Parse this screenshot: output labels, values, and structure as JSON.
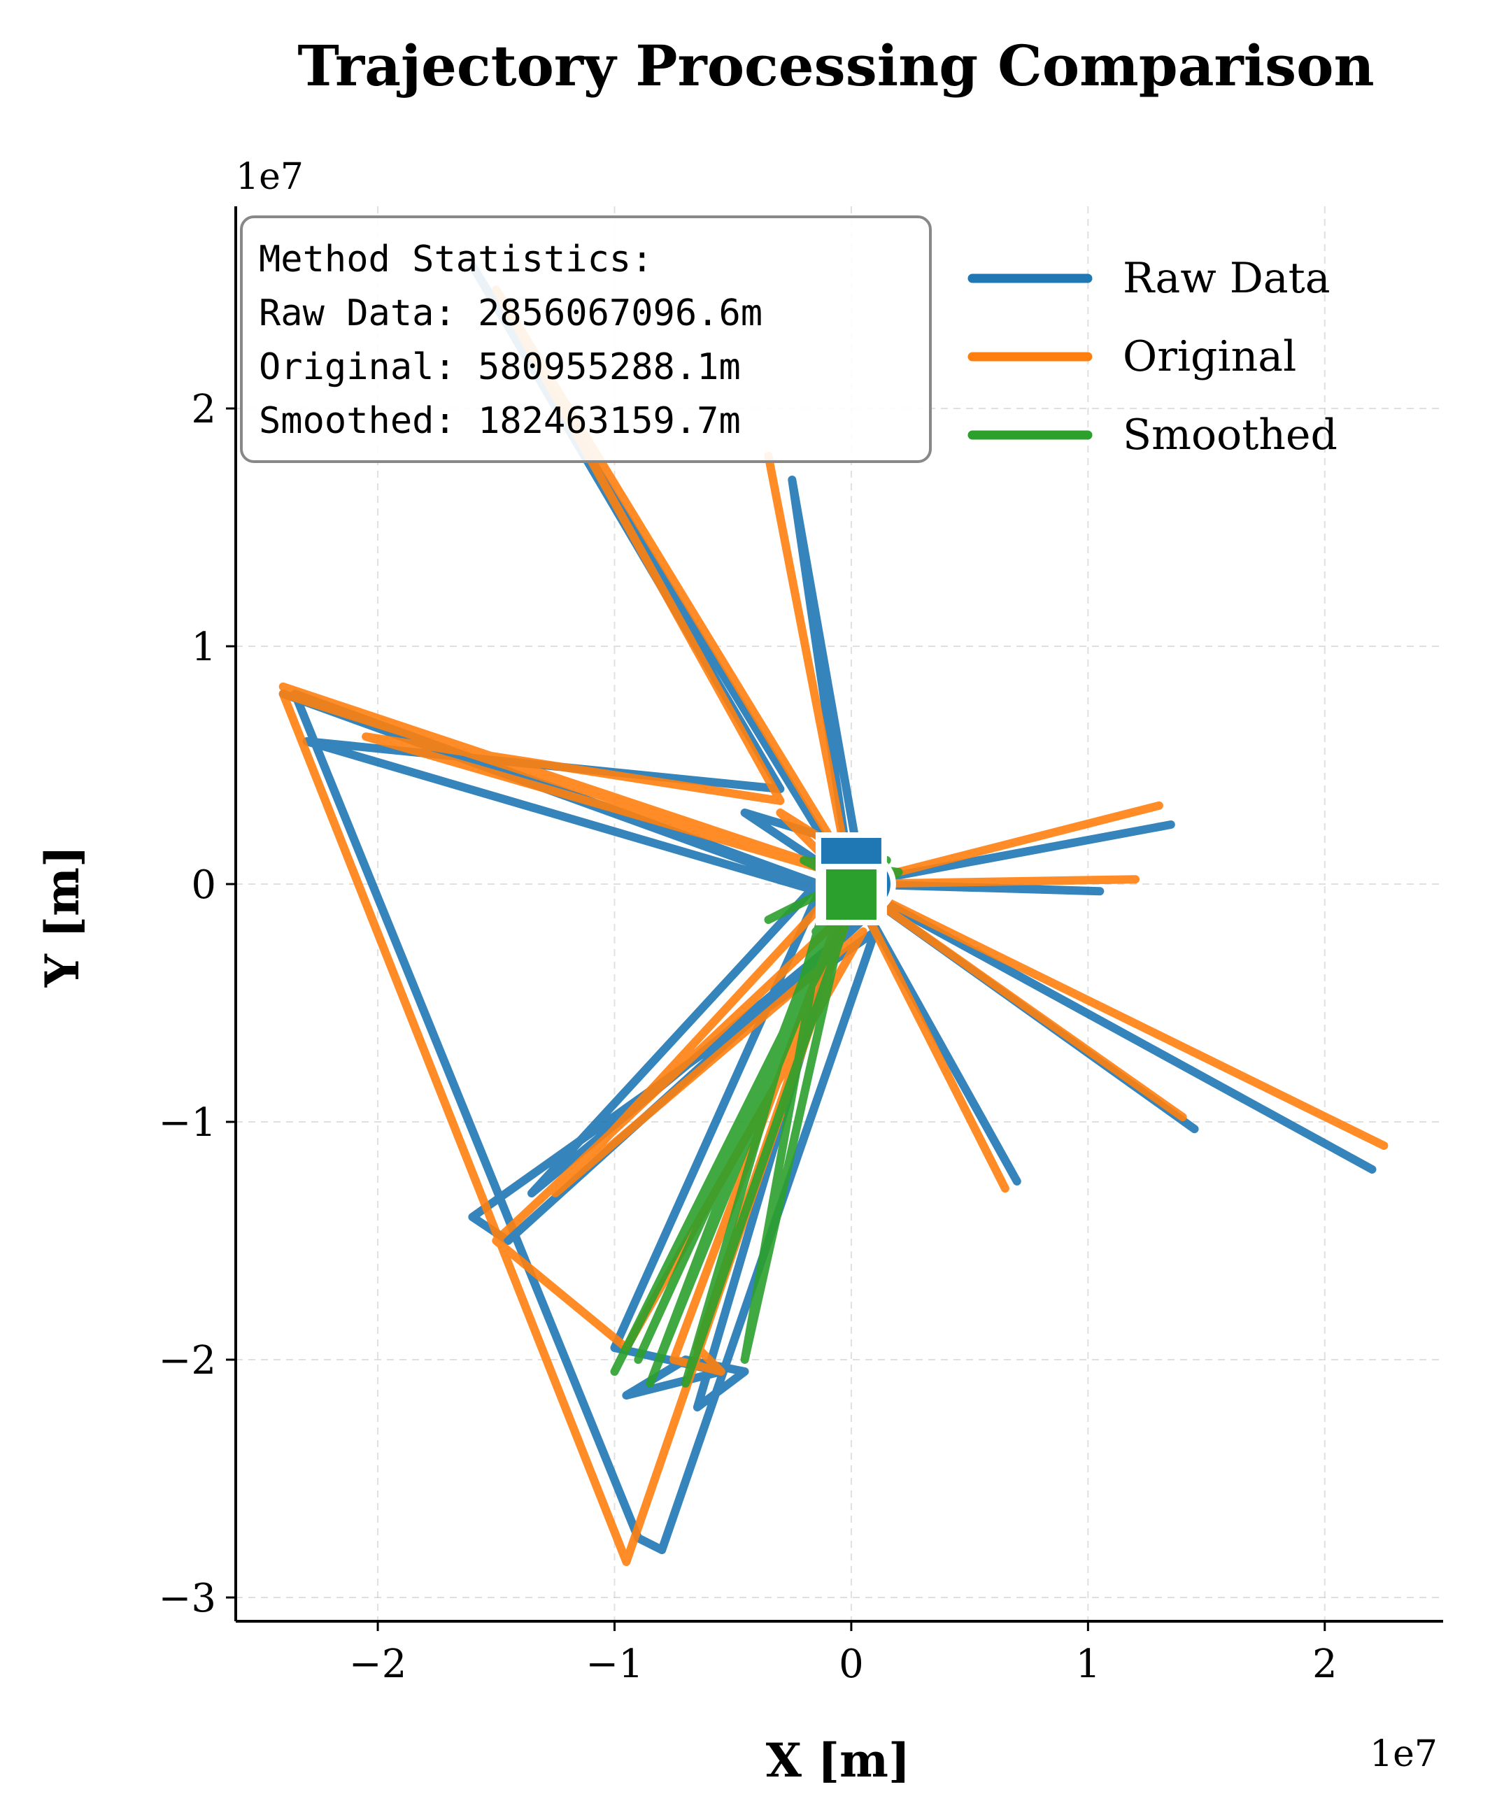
{
  "chart_data": {
    "type": "line",
    "title": "Trajectory Processing Comparison",
    "xlabel": "X [m]",
    "ylabel": "Y [m]",
    "x_offset_label": "1e7",
    "y_offset_label": "1e7",
    "xlim": [
      -2.6,
      2.5
    ],
    "ylim": [
      -3.1,
      2.85
    ],
    "x_ticks": [
      -2,
      -1,
      0,
      1,
      2
    ],
    "y_ticks": [
      -3,
      -2,
      -1,
      0,
      1,
      2
    ],
    "x_tick_labels": [
      "−2",
      "−1",
      "0",
      "1",
      "2"
    ],
    "y_tick_labels": [
      "−3",
      "−2",
      "−1",
      "0",
      "1",
      "2"
    ],
    "grid": true,
    "legend_position": "top-right",
    "stats_box": {
      "header": "Method Statistics:",
      "lines": [
        "Raw Data: 2856067096.6m",
        "Original: 580955288.1m",
        "Smoothed: 182463159.7m"
      ]
    },
    "series": [
      {
        "name": "Raw Data",
        "color": "#1f77b4",
        "points": [
          [
            0.0,
            0.0
          ],
          [
            -1.6,
            2.6
          ],
          [
            -0.3,
            0.4
          ],
          [
            -2.3,
            0.6
          ],
          [
            0.1,
            -0.1
          ],
          [
            -2.4,
            0.8
          ],
          [
            -0.0,
            -0.05
          ],
          [
            -2.35,
            0.8
          ],
          [
            -0.9,
            -2.75
          ],
          [
            -0.8,
            -2.8
          ],
          [
            0.1,
            -0.2
          ],
          [
            -1.6,
            -1.4
          ],
          [
            -1.45,
            -1.5
          ],
          [
            0.05,
            -0.15
          ],
          [
            -1.35,
            -1.3
          ],
          [
            -0.1,
            0.05
          ],
          [
            -1.0,
            -1.95
          ],
          [
            -0.55,
            -2.05
          ],
          [
            -0.95,
            -2.15
          ],
          [
            -0.7,
            -2.0
          ],
          [
            -0.45,
            -2.05
          ],
          [
            -0.65,
            -2.2
          ],
          [
            0.0,
            0.0
          ],
          [
            -0.25,
            1.7
          ],
          [
            0.05,
            0.0
          ],
          [
            1.05,
            -0.03
          ],
          [
            0.0,
            0.0
          ],
          [
            1.35,
            0.25
          ],
          [
            0.0,
            0.0
          ],
          [
            2.2,
            -1.2
          ],
          [
            0.0,
            0.0
          ],
          [
            1.45,
            -1.03
          ],
          [
            0.0,
            0.0
          ],
          [
            0.7,
            -1.25
          ],
          [
            0.0,
            0.0
          ],
          [
            -0.45,
            0.3
          ],
          [
            0.05,
            0.15
          ],
          [
            0.1,
            -0.2
          ],
          [
            0.0,
            0.0
          ]
        ]
      },
      {
        "name": "Original",
        "color": "#ff7f0e",
        "points": [
          [
            0.0,
            0.05
          ],
          [
            -1.5,
            2.5
          ],
          [
            -0.3,
            0.35
          ],
          [
            -2.05,
            0.62
          ],
          [
            0.1,
            0.0
          ],
          [
            -2.4,
            0.83
          ],
          [
            -0.05,
            0.05
          ],
          [
            -2.4,
            0.8
          ],
          [
            -0.95,
            -2.85
          ],
          [
            0.0,
            -0.1
          ],
          [
            -1.5,
            -1.5
          ],
          [
            -0.95,
            -1.95
          ],
          [
            0.05,
            -0.2
          ],
          [
            -1.25,
            -1.3
          ],
          [
            0.05,
            0.1
          ],
          [
            -0.65,
            -1.95
          ],
          [
            -0.55,
            -2.05
          ],
          [
            -0.75,
            -2.0
          ],
          [
            0.0,
            0.0
          ],
          [
            -0.35,
            1.8
          ],
          [
            0.0,
            0.0
          ],
          [
            1.2,
            0.02
          ],
          [
            0.0,
            0.0
          ],
          [
            1.3,
            0.33
          ],
          [
            0.0,
            0.0
          ],
          [
            2.25,
            -1.1
          ],
          [
            0.0,
            0.0
          ],
          [
            1.4,
            -0.98
          ],
          [
            0.0,
            0.0
          ],
          [
            0.65,
            -1.28
          ],
          [
            0.0,
            0.0
          ],
          [
            -0.3,
            0.3
          ],
          [
            0.1,
            0.05
          ],
          [
            0.0,
            0.0
          ]
        ]
      },
      {
        "name": "Smoothed",
        "color": "#2ca02c",
        "points": [
          [
            0.0,
            0.0
          ],
          [
            -0.9,
            -2.0
          ],
          [
            -0.05,
            -0.15
          ],
          [
            -1.0,
            -2.05
          ],
          [
            0.0,
            -0.1
          ],
          [
            -0.7,
            -2.1
          ],
          [
            -0.1,
            -0.05
          ],
          [
            -0.45,
            -2.0
          ],
          [
            0.0,
            0.0
          ],
          [
            -0.85,
            -2.1
          ],
          [
            -0.05,
            0.0
          ],
          [
            -0.35,
            -0.15
          ],
          [
            0.15,
            0.1
          ],
          [
            -0.15,
            -0.2
          ],
          [
            0.2,
            0.05
          ],
          [
            -0.2,
            0.1
          ],
          [
            0.1,
            -0.05
          ],
          [
            0.0,
            0.0
          ]
        ]
      }
    ],
    "markers": [
      {
        "name": "start",
        "shape": "circle",
        "x": 0.0,
        "y": 0.0
      },
      {
        "name": "end",
        "shape": "square",
        "x": 0.0,
        "y": 0.0
      }
    ]
  }
}
